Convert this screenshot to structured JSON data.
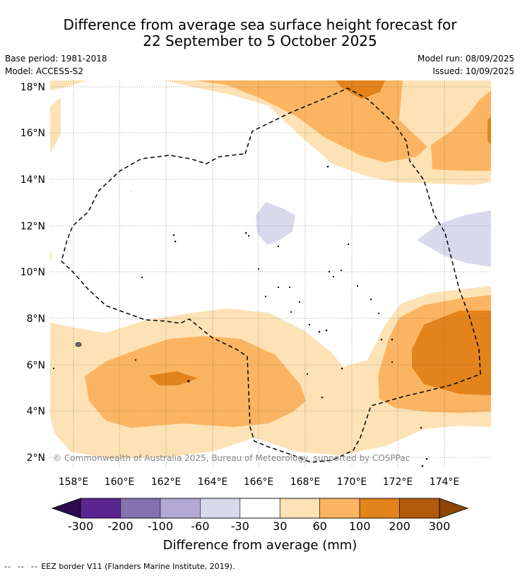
{
  "title": {
    "line1": "Difference from average sea surface height forecast for",
    "line2": "22 September to 5 October 2025"
  },
  "meta": {
    "base_period": "Base period: 1981-2018",
    "model": "Model: ACCESS-S2",
    "model_run": "Model run: 08/09/2025",
    "issued": "Issued: 10/09/2025"
  },
  "map": {
    "lat_labels": [
      "18°N",
      "16°N",
      "14°N",
      "12°N",
      "10°N",
      "8°N",
      "6°N",
      "4°N",
      "2°N"
    ],
    "lon_labels": [
      "158°E",
      "160°E",
      "162°E",
      "164°E",
      "166°E",
      "168°E",
      "170°E",
      "172°E",
      "174°E"
    ],
    "copyright": "© Commonwealth of Australia 2025, Bureau of Meteorology, supported by COSPPac"
  },
  "colorbar": {
    "ticks": [
      "-300",
      "-200",
      "-100",
      "-60",
      "-30",
      "30",
      "60",
      "100",
      "200",
      "300"
    ],
    "colors": [
      "#5b2590",
      "#8471b0",
      "#b1a8d3",
      "#d9d9ec",
      "#ffffff",
      "#fde2b5",
      "#fbb562",
      "#e2831b",
      "#b35a0c"
    ],
    "low_extend_color": "#2e0a4f",
    "high_extend_color": "#8e4508",
    "label": "Difference from average (mm)"
  },
  "legend": {
    "eez_label": "EEZ border V11 (Flanders Marine Institute, 2019)."
  }
}
